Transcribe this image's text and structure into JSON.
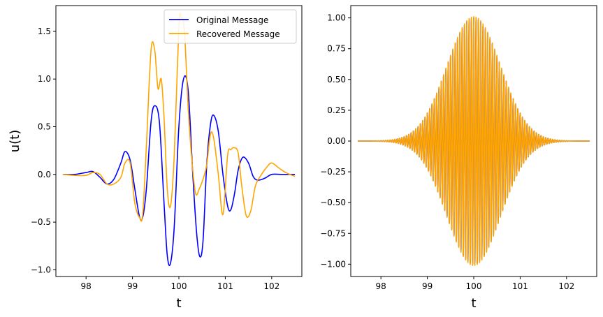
{
  "chart_data": [
    {
      "type": "line",
      "xlabel": "t",
      "ylabel": "u(t)",
      "xlim": [
        97.35,
        102.65
      ],
      "ylim": [
        -1.07,
        1.77
      ],
      "xticks": [
        98,
        99,
        100,
        101,
        102
      ],
      "yticks": [
        -1.0,
        -0.5,
        0.0,
        0.5,
        1.0,
        1.5
      ],
      "ytick_labels": [
        "−1.0",
        "−0.5",
        "0.0",
        "0.5",
        "1.0",
        "1.5"
      ],
      "legend": {
        "placement": "top-right",
        "entries": [
          "Original Message",
          "Recovered Message"
        ]
      },
      "grid": false,
      "series": [
        {
          "name": "Original Message",
          "color": "#0000ff",
          "x": [
            97.5,
            97.75,
            98.0,
            98.15,
            98.3,
            98.45,
            98.6,
            98.75,
            98.84,
            98.95,
            99.05,
            99.15,
            99.22,
            99.3,
            99.4,
            99.48,
            99.58,
            99.68,
            99.75,
            99.82,
            99.9,
            100.0,
            100.1,
            100.2,
            100.3,
            100.38,
            100.45,
            100.52,
            100.6,
            100.68,
            100.75,
            100.85,
            100.95,
            101.05,
            101.12,
            101.2,
            101.28,
            101.38,
            101.5,
            101.6,
            101.7,
            101.85,
            102.0,
            102.2,
            102.5
          ],
          "y": [
            0.0,
            0.0,
            0.02,
            0.03,
            -0.03,
            -0.1,
            -0.05,
            0.12,
            0.24,
            0.15,
            -0.15,
            -0.44,
            -0.45,
            -0.15,
            0.55,
            0.72,
            0.55,
            -0.3,
            -0.85,
            -0.93,
            -0.55,
            0.5,
            1.0,
            0.88,
            0.0,
            -0.6,
            -0.86,
            -0.7,
            0.1,
            0.52,
            0.62,
            0.45,
            0.0,
            -0.33,
            -0.37,
            -0.2,
            0.05,
            0.18,
            0.12,
            -0.02,
            -0.06,
            -0.04,
            0.0,
            0.0,
            0.0
          ]
        },
        {
          "name": "Recovered Message",
          "color": "#ffa500",
          "x": [
            97.5,
            97.75,
            98.0,
            98.15,
            98.3,
            98.45,
            98.6,
            98.75,
            98.84,
            98.95,
            99.05,
            99.15,
            99.22,
            99.3,
            99.4,
            99.48,
            99.55,
            99.62,
            99.68,
            99.75,
            99.82,
            99.9,
            100.0,
            100.05,
            100.12,
            100.2,
            100.28,
            100.36,
            100.44,
            100.52,
            100.6,
            100.68,
            100.75,
            100.85,
            100.95,
            101.05,
            101.12,
            101.2,
            101.28,
            101.35,
            101.45,
            101.55,
            101.65,
            101.78,
            101.9,
            102.0,
            102.15,
            102.3,
            102.5
          ],
          "y": [
            0.0,
            -0.01,
            -0.01,
            0.02,
            0.0,
            -0.1,
            -0.1,
            -0.03,
            0.12,
            0.12,
            -0.3,
            -0.45,
            -0.42,
            0.3,
            1.3,
            1.3,
            0.9,
            1.0,
            0.6,
            -0.15,
            -0.33,
            0.2,
            1.55,
            1.65,
            1.5,
            0.7,
            0.15,
            -0.2,
            -0.15,
            -0.05,
            0.1,
            0.42,
            0.38,
            0.0,
            -0.42,
            0.2,
            0.26,
            0.28,
            0.22,
            -0.1,
            -0.43,
            -0.38,
            -0.12,
            0.0,
            0.08,
            0.12,
            0.07,
            0.02,
            -0.02
          ]
        }
      ]
    },
    {
      "type": "line",
      "xlabel": "t",
      "ylabel": "",
      "xlim": [
        97.35,
        102.65
      ],
      "ylim": [
        -1.1,
        1.1
      ],
      "xticks": [
        98,
        99,
        100,
        101,
        102
      ],
      "yticks": [
        -1.0,
        -0.75,
        -0.5,
        -0.25,
        0.0,
        0.25,
        0.5,
        0.75,
        1.0
      ],
      "ytick_labels": [
        "−1.00",
        "−0.75",
        "−0.50",
        "−0.25",
        "0.00",
        "0.25",
        "0.50",
        "0.75",
        "1.00"
      ],
      "grid": false,
      "series": [
        {
          "name": "",
          "color": "#0000ff",
          "envelope_center": 100.0,
          "envelope_sigma": 0.58,
          "amplitude": 1.0,
          "carrier_frequency": 20.0,
          "x_range": [
            97.5,
            102.5
          ]
        },
        {
          "name": "",
          "color": "#ffa500",
          "envelope_center": 100.0,
          "envelope_sigma": 0.58,
          "amplitude": 1.01,
          "carrier_frequency": 20.0,
          "x_range": [
            97.5,
            102.5
          ]
        }
      ]
    }
  ]
}
